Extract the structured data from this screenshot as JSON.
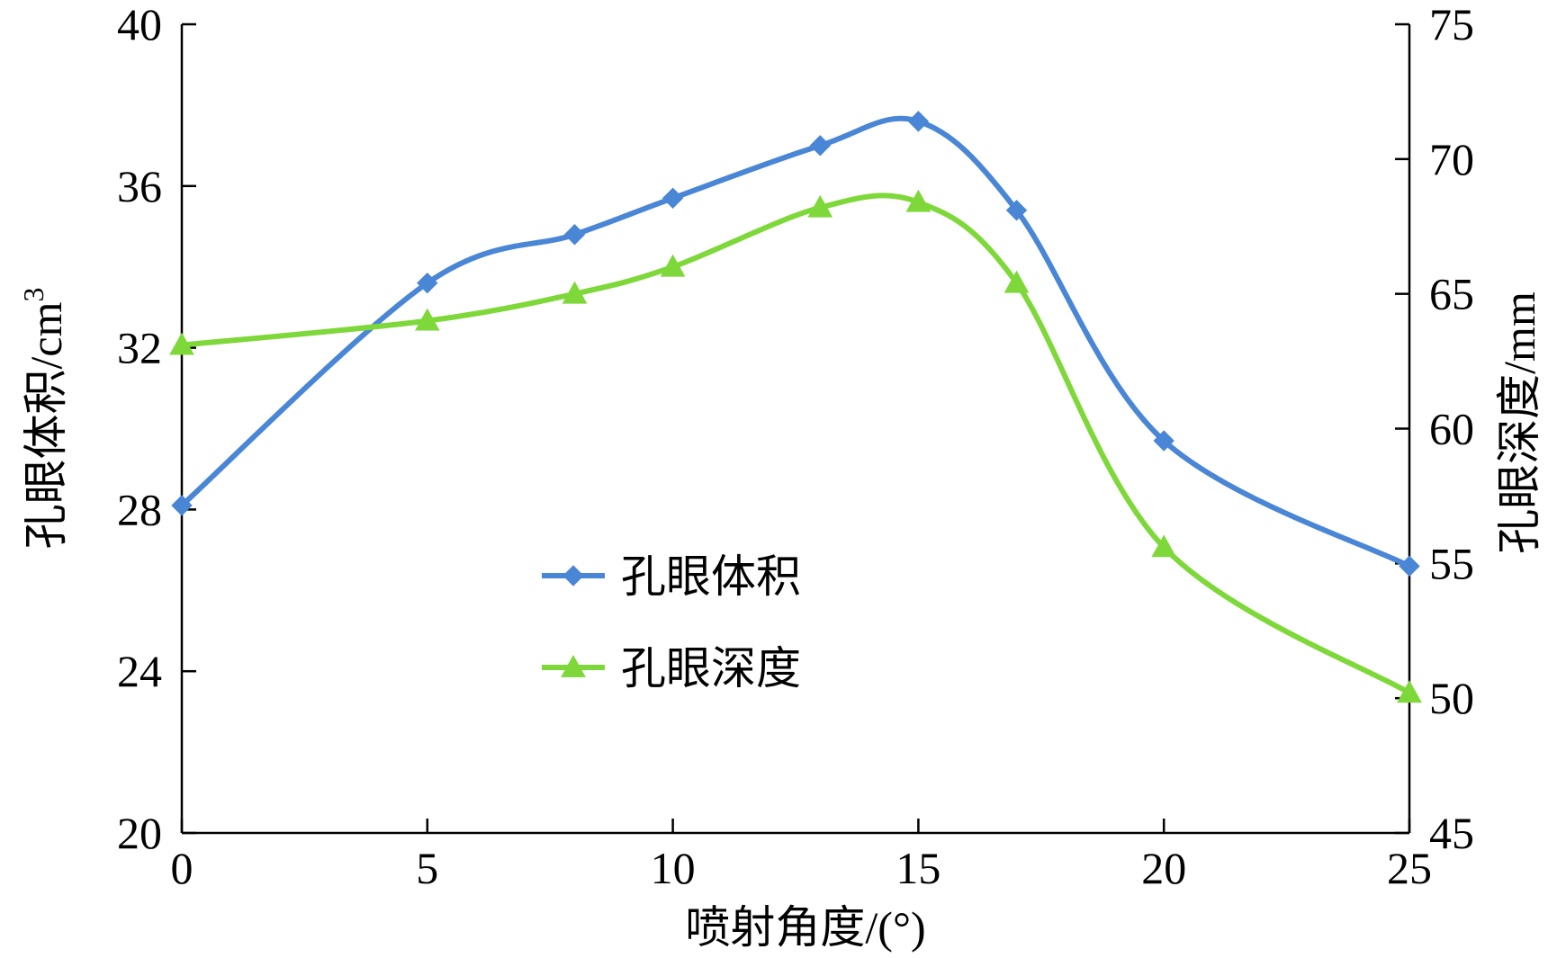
{
  "chart_data": {
    "type": "line",
    "x": [
      0,
      5,
      8,
      10,
      13,
      15,
      17,
      20,
      25
    ],
    "xlabel": "喷射角度/(°)",
    "xlim": [
      0,
      25
    ],
    "xticks": [
      0,
      5,
      10,
      15,
      20,
      25
    ],
    "ylabel_left": "孔眼体积/cm",
    "ylabel_left_sup": "3",
    "ylim_left": [
      20,
      40
    ],
    "yticks_left": [
      20,
      24,
      28,
      32,
      36,
      40
    ],
    "ylabel_right": "孔眼深度/mm",
    "ylim_right": [
      45,
      75
    ],
    "yticks_right": [
      45,
      50,
      55,
      60,
      65,
      70,
      75
    ],
    "series": [
      {
        "name": "孔眼体积",
        "axis": "left",
        "marker": "diamond",
        "color": "#4a86d6",
        "values": [
          28.1,
          33.6,
          34.8,
          35.7,
          37.0,
          37.6,
          35.4,
          29.7,
          26.6
        ]
      },
      {
        "name": "孔眼深度",
        "axis": "right",
        "marker": "triangle",
        "color": "#7ed83a",
        "values": [
          63.1,
          64.0,
          65.0,
          66.0,
          68.2,
          68.4,
          65.4,
          55.6,
          50.2
        ]
      }
    ],
    "grid": false,
    "legend": "center-left"
  }
}
